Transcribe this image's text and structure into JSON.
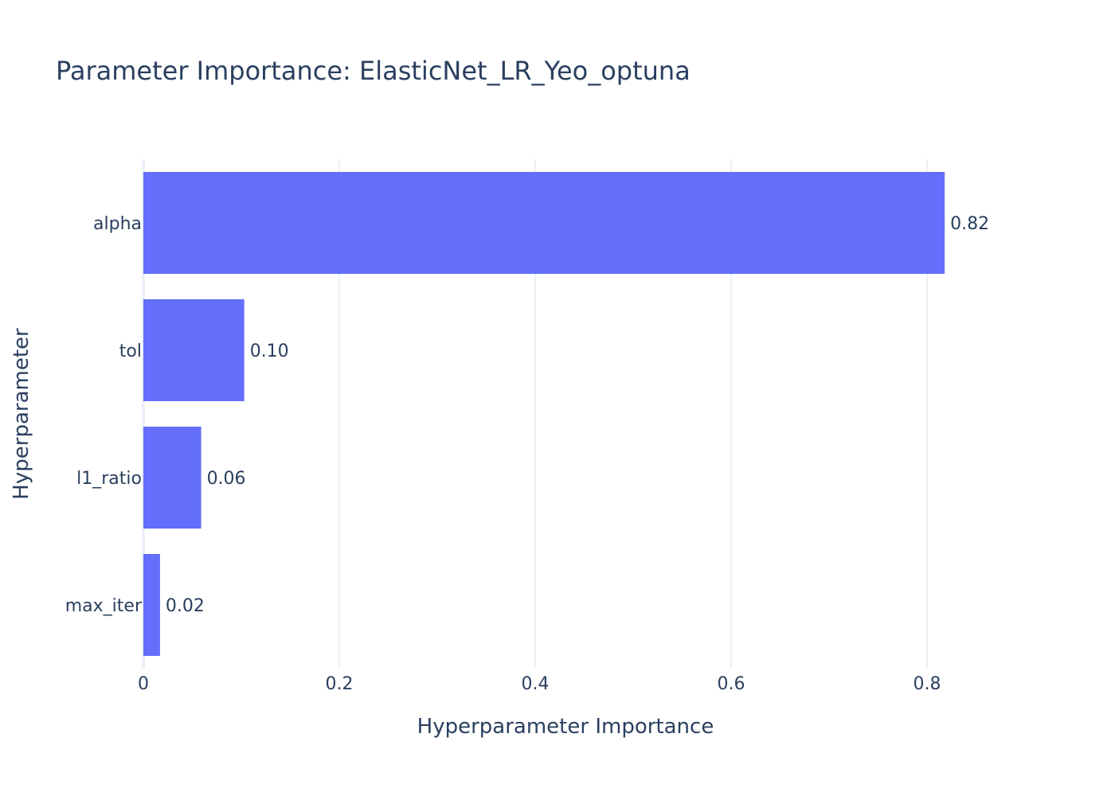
{
  "chart_data": {
    "type": "bar",
    "orientation": "horizontal",
    "title": "Parameter Importance: ElasticNet_LR_Yeo_optuna",
    "xlabel": "Hyperparameter Importance",
    "ylabel": "Hyperparameter",
    "categories": [
      "alpha",
      "tol",
      "l1_ratio",
      "max_iter"
    ],
    "values": [
      0.818,
      0.103,
      0.059,
      0.017
    ],
    "value_labels": [
      "0.82",
      "0.10",
      "0.06",
      "0.02"
    ],
    "xlim": [
      0,
      0.9
    ],
    "xticks": [
      0,
      0.2,
      0.4,
      0.6,
      0.8
    ],
    "xtick_labels": [
      "0",
      "0.2",
      "0.4",
      "0.6",
      "0.8"
    ],
    "grid": true,
    "bar_color": "#636efa"
  }
}
